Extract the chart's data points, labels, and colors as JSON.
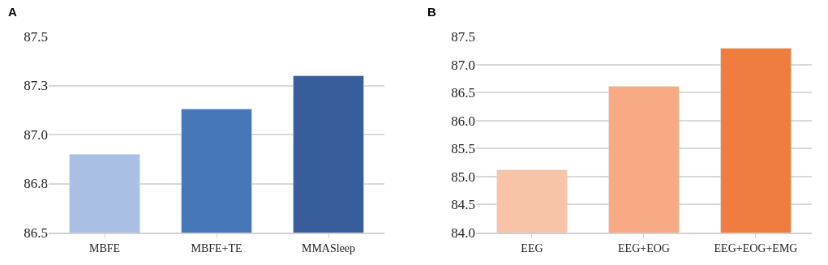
{
  "chart_data": [
    {
      "type": "bar",
      "title": "A",
      "categories": [
        "MBFE",
        "MBFE+TE",
        "MMASleep"
      ],
      "values": [
        86.9,
        87.13,
        87.3
      ],
      "colors": [
        "#a9c0e4",
        "#4677b9",
        "#375d9b"
      ],
      "ylim": [
        86.5,
        87.5
      ],
      "yticks": [
        86.5,
        {
          "value": 86.75,
          "label": "86.8"
        },
        {
          "value": 87,
          "label": "87.0"
        },
        {
          "value": 87.25,
          "label": "87.3"
        },
        87.5
      ],
      "grid": "y",
      "legend": false
    },
    {
      "type": "bar",
      "title": "B",
      "categories": [
        "EEG",
        "EEG+EOG",
        "EEG+EOG+EMG"
      ],
      "values": [
        85.12,
        86.61,
        87.29
      ],
      "colors": [
        "#f8c4a8",
        "#f7aa83",
        "#ef7d40"
      ],
      "ylim": [
        84.0,
        87.5
      ],
      "yticks": [
        {
          "value": 84,
          "label": "84.0"
        },
        84.5,
        {
          "value": 85,
          "label": "85.0"
        },
        85.5,
        {
          "value": 86,
          "label": "86.0"
        },
        86.5,
        {
          "value": 87,
          "label": "87.0"
        },
        87.5
      ],
      "grid": "y",
      "legend": false
    }
  ]
}
